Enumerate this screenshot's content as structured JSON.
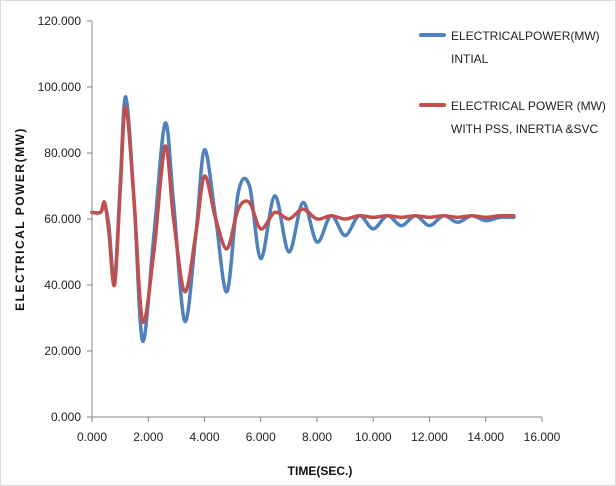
{
  "chart_data": {
    "type": "line",
    "title": "",
    "xlabel": "TIME(SEC.)",
    "ylabel": "ELECTRICAL POWER(MW)",
    "xlim": [
      0,
      16
    ],
    "ylim": [
      0,
      120
    ],
    "x_ticks": [
      "0.000",
      "2.000",
      "4.000",
      "6.000",
      "8.000",
      "10.000",
      "12.000",
      "14.000",
      "16.000"
    ],
    "y_ticks": [
      "0.000",
      "20.000",
      "40.000",
      "60.000",
      "80.000",
      "100.000",
      "120.000"
    ],
    "grid": false,
    "legend_position": "top-right",
    "series": [
      {
        "name": "ELECTRICALPOWER(MW) INTIAL",
        "legend_lines": [
          "ELECTRICALPOWER(MW)",
          "INTIAL"
        ],
        "color": "#4f81bd",
        "x": [
          0,
          0.3,
          0.45,
          0.6,
          0.8,
          1.0,
          1.2,
          1.5,
          1.8,
          2.2,
          2.6,
          2.9,
          3.3,
          3.7,
          4.0,
          4.4,
          4.8,
          5.2,
          5.6,
          6.0,
          6.5,
          7.0,
          7.5,
          8.0,
          8.5,
          9.0,
          9.5,
          10.0,
          10.5,
          11.0,
          11.5,
          12.0,
          12.5,
          13.0,
          13.5,
          14.0,
          14.5,
          15.0
        ],
        "values": [
          62,
          62,
          64,
          58,
          41,
          70,
          97,
          65,
          23,
          55,
          89,
          65,
          29,
          56,
          81,
          60,
          38,
          68,
          70,
          48,
          67,
          50,
          65,
          53,
          61,
          55,
          61,
          57,
          61,
          58,
          61,
          58,
          61,
          59,
          61,
          59.5,
          60.5,
          60.5
        ]
      },
      {
        "name": "ELECTRICAL POWER (MW) WITH PSS, INERTIA &SVC",
        "legend_lines": [
          "ELECTRICAL POWER (MW)",
          "WITH PSS, INERTIA &SVC"
        ],
        "color": "#c0504d",
        "x": [
          0,
          0.3,
          0.45,
          0.6,
          0.8,
          1.0,
          1.2,
          1.5,
          1.8,
          2.2,
          2.6,
          2.9,
          3.3,
          3.7,
          4.0,
          4.4,
          4.8,
          5.2,
          5.6,
          6.0,
          6.5,
          7.0,
          7.5,
          8.0,
          8.5,
          9.0,
          9.5,
          10.0,
          10.5,
          11.0,
          11.5,
          12.0,
          12.5,
          13.0,
          13.5,
          14.0,
          14.5,
          15.0
        ],
        "values": [
          62,
          62,
          65,
          56,
          40,
          68,
          94,
          65,
          29,
          50,
          82,
          60,
          38,
          56,
          73,
          60,
          51,
          63,
          65,
          57,
          62,
          60,
          63,
          60,
          61,
          60,
          61,
          60.5,
          61,
          60.5,
          61,
          60.5,
          61,
          60.5,
          61,
          60.5,
          61,
          61
        ]
      }
    ]
  }
}
